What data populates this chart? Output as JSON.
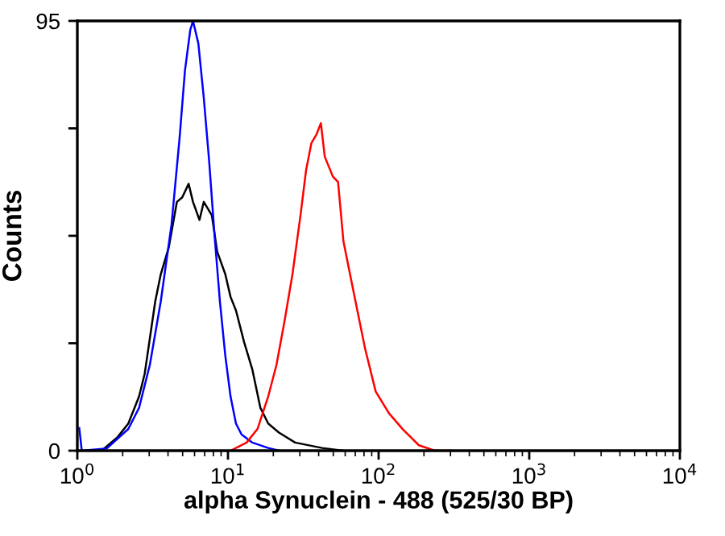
{
  "chart_data": {
    "type": "line",
    "xlabel": "alpha Synuclein - 488 (525/30 BP)",
    "ylabel": "Counts",
    "log": "x",
    "xlim": [
      1,
      10000
    ],
    "ylim": [
      0,
      95
    ],
    "xticks": [
      {
        "value": 1,
        "label": "10$^{0}$"
      },
      {
        "value": 10,
        "label": "10$^{1}$"
      },
      {
        "value": 100,
        "label": "10$^{2}$"
      },
      {
        "value": 1000,
        "label": "10$^{3}$"
      },
      {
        "value": 10000,
        "label": "10$^{4}$"
      }
    ],
    "yticks": [
      0,
      {
        "value": 23.75,
        "label": null
      },
      {
        "value": 47.5,
        "label": null
      },
      {
        "value": 71.25,
        "label": null
      },
      95
    ],
    "grid": false,
    "legend": false,
    "series": [
      {
        "color": "#000000",
        "x": [
          1.45,
          1.85,
          2.18,
          2.57,
          2.8,
          3.29,
          3.58,
          4.05,
          4.58,
          4.97,
          5.48,
          5.86,
          6.47,
          6.91,
          7.82,
          8.48,
          9.6,
          10.4,
          11.3,
          12.8,
          14.5,
          16.4,
          18.5,
          21.8,
          27.9,
          42.2,
          58.6
        ],
        "values": [
          0,
          3,
          6,
          12,
          17,
          33,
          39,
          45,
          55,
          56,
          59,
          55,
          51,
          55,
          52,
          44,
          39,
          34,
          31,
          24,
          18,
          9.5,
          6,
          4,
          1.8,
          0.6,
          0
        ]
      },
      {
        "color": "#0000ff",
        "x": [
          1.03,
          1.07,
          1.57,
          2.18,
          2.57,
          3.03,
          3.58,
          4.22,
          4.77,
          5.18,
          5.62,
          5.86,
          6.36,
          6.91,
          7.5,
          8.15,
          8.84,
          9.6,
          10.4,
          11.3,
          12.3,
          14.5,
          18.5,
          21.8
        ],
        "values": [
          5,
          0,
          0.5,
          4.8,
          9.5,
          19,
          33,
          50,
          69,
          84,
          93,
          95,
          90,
          78,
          64,
          47.5,
          33,
          21,
          12,
          6,
          3.6,
          1.8,
          0.6,
          0
        ]
      },
      {
        "color": "#ff0000",
        "x": [
          10.4,
          13.3,
          15.7,
          18.5,
          21.0,
          23.7,
          26.8,
          30.3,
          33.0,
          35.8,
          38.8,
          41.4,
          43.9,
          49.7,
          53.8,
          58.4,
          68.9,
          81.3,
          95.6,
          117,
          145,
          185,
          236,
          302
        ],
        "values": [
          0,
          1.8,
          4.8,
          12,
          19,
          28.5,
          39,
          52,
          62,
          68,
          70,
          72.4,
          65,
          60.6,
          59.4,
          46.3,
          34.4,
          22.6,
          13.1,
          8.3,
          4.7,
          1.2,
          0,
          0
        ]
      }
    ]
  }
}
